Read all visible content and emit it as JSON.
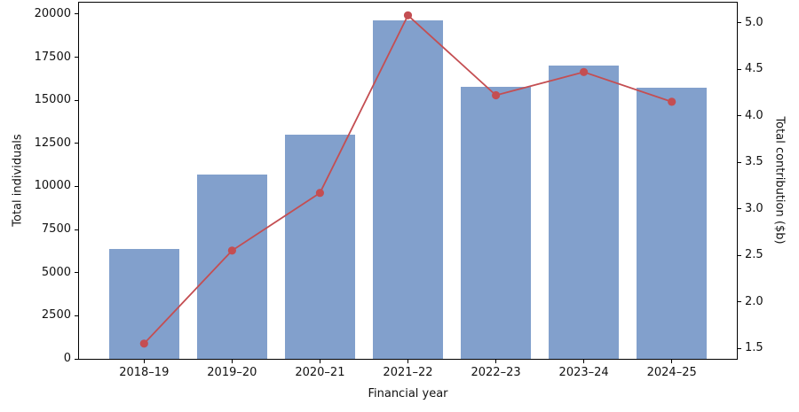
{
  "chart_data": {
    "type": "combo",
    "categories": [
      "2018–19",
      "2019–20",
      "2020–21",
      "2021–22",
      "2022–23",
      "2023–24",
      "2024–25"
    ],
    "series": [
      {
        "name": "Total individuals",
        "type": "bar",
        "axis": "left",
        "values": [
          6400,
          10700,
          13000,
          19620,
          15800,
          17000,
          15720
        ],
        "color": "#82a0cc"
      },
      {
        "name": "Total contribution ($b)",
        "type": "line",
        "axis": "right",
        "values": [
          1.55,
          2.55,
          3.17,
          5.08,
          4.22,
          4.47,
          4.15
        ],
        "color": "#c44e52",
        "marker": "circle"
      }
    ],
    "title": "",
    "xlabel": "Financial year",
    "ylabel_left": "Total individuals",
    "ylabel_right": "Total contribution ($b)",
    "ylim_left": [
      0,
      20668
    ],
    "ylim_right": [
      1.386,
      5.216
    ],
    "yticks_left": [
      "0",
      "2500",
      "5000",
      "7500",
      "10000",
      "12500",
      "15000",
      "17500",
      "20000"
    ],
    "yticks_right": [
      "1.5",
      "2.0",
      "2.5",
      "3.0",
      "3.5",
      "4.0",
      "4.5",
      "5.0"
    ],
    "grid": false,
    "legend": "none",
    "axis_color": "#000000",
    "text_color": "#111111",
    "background": "#ffffff"
  }
}
